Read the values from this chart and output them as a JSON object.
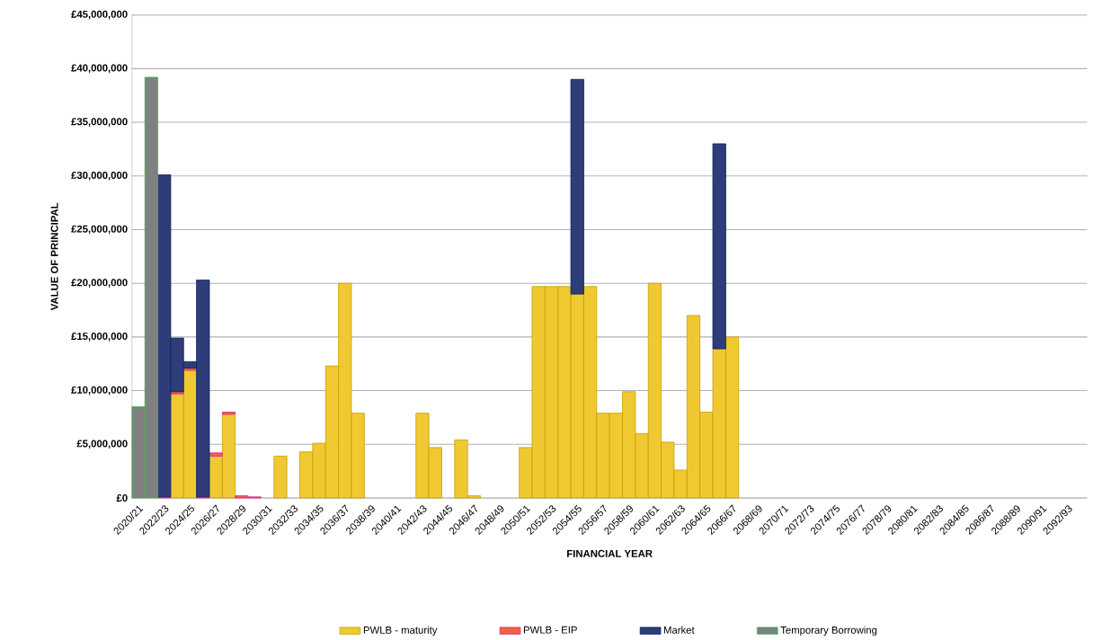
{
  "chart_data": {
    "type": "bar",
    "stacked": true,
    "xlabel": "FINANCIAL YEAR",
    "ylabel": "VALUE OF PRINCIPAL",
    "categories": [
      "2020/21",
      null,
      "2022/23",
      null,
      "2024/25",
      null,
      "2026/27",
      null,
      "2028/29",
      null,
      "2030/31",
      null,
      "2032/33",
      null,
      "2034/35",
      null,
      "2036/37",
      null,
      "2038/39",
      null,
      "2040/41",
      null,
      "2042/43",
      null,
      "2044/45",
      null,
      "2046/47",
      null,
      "2048/49",
      null,
      "2050/51",
      null,
      "2052/53",
      null,
      "2054/55",
      null,
      "2056/57",
      null,
      "2058/59",
      null,
      "2060/61",
      null,
      "2062/63",
      null,
      "2064/65",
      null,
      "2066/67",
      null,
      "2068/69",
      null,
      "2070/71",
      null,
      "2072/73",
      null,
      "2074/75",
      null,
      "2076/77",
      null,
      "2078/79",
      null,
      "2080/81",
      null,
      "2082/83",
      null,
      "2084/85",
      null,
      "2086/87",
      null,
      "2088/89",
      null,
      "2090/91",
      null,
      "2092/93",
      null
    ],
    "series": [
      {
        "name": "PWLB - maturity",
        "color": "#f0c832",
        "values": [
          null,
          null,
          null,
          9700000,
          11900000,
          null,
          3900000,
          7800000,
          null,
          null,
          null,
          3900000,
          null,
          4300000,
          5100000,
          12300000,
          20000000,
          7900000,
          null,
          null,
          null,
          null,
          7900000,
          4700000,
          null,
          5400000,
          200000,
          null,
          null,
          null,
          4700000,
          19700000,
          19700000,
          19700000,
          19000000,
          19700000,
          7900000,
          7900000,
          9900000,
          6000000,
          20000000,
          5200000,
          2600000,
          17000000,
          8000000,
          13900000,
          15000000,
          null,
          null,
          null,
          null,
          null,
          null,
          null,
          null,
          null,
          null,
          null,
          null,
          null,
          null,
          null,
          null,
          null,
          null,
          null,
          null,
          null,
          null,
          null,
          null,
          null,
          null,
          null
        ]
      },
      {
        "name": "PWLB - EIP",
        "color": "#f0643c",
        "values": [
          null,
          null,
          100000,
          200000,
          200000,
          100000,
          300000,
          200000,
          200000,
          100000,
          null,
          null,
          null,
          null,
          null,
          null,
          null,
          null,
          null,
          null,
          null,
          null,
          null,
          null,
          null,
          null,
          null,
          null,
          null,
          null,
          null,
          null,
          null,
          null,
          null,
          null,
          null,
          null,
          null,
          null,
          null,
          null,
          null,
          null,
          null,
          null,
          null,
          null,
          null,
          null,
          null,
          null,
          null,
          null,
          null,
          null,
          null,
          null,
          null,
          null,
          null,
          null,
          null,
          null,
          null,
          null,
          null,
          null,
          null,
          null,
          null,
          null,
          null,
          null
        ]
      },
      {
        "name": "Market",
        "color": "#2e3d78",
        "values": [
          null,
          null,
          30000000,
          5000000,
          600000,
          20200000,
          null,
          null,
          null,
          null,
          null,
          null,
          null,
          null,
          null,
          null,
          null,
          null,
          null,
          null,
          null,
          null,
          null,
          null,
          null,
          null,
          null,
          null,
          null,
          null,
          null,
          null,
          null,
          null,
          20000000,
          null,
          null,
          null,
          null,
          null,
          null,
          null,
          null,
          null,
          null,
          19100000,
          null,
          null,
          null,
          null,
          null,
          null,
          null,
          null,
          null,
          null,
          null,
          null,
          null,
          null,
          null,
          null,
          null,
          null,
          null,
          null,
          null,
          null,
          null,
          null,
          null,
          null,
          null,
          null
        ]
      },
      {
        "name": "Temporary Borrowing",
        "color": "#808080",
        "values": [
          8500000,
          39200000,
          null,
          null,
          null,
          null,
          null,
          null,
          null,
          null,
          null,
          null,
          null,
          null,
          null,
          null,
          null,
          null,
          null,
          null,
          null,
          null,
          null,
          null,
          null,
          null,
          null,
          null,
          null,
          null,
          null,
          null,
          null,
          null,
          null,
          null,
          null,
          null,
          null,
          null,
          null,
          null,
          null,
          null,
          null,
          null,
          null,
          null,
          null,
          null,
          null,
          null,
          null,
          null,
          null,
          null,
          null,
          null,
          null,
          null,
          null,
          null,
          null,
          null,
          null,
          null,
          null,
          null,
          null,
          null,
          null,
          null,
          null,
          null
        ]
      }
    ],
    "ylim": [
      0,
      45000000
    ],
    "yticks": [
      {
        "value": 0,
        "label": "£0"
      },
      {
        "value": 5000000,
        "label": "£5,000,000"
      },
      {
        "value": 10000000,
        "label": "£10,000,000"
      },
      {
        "value": 15000000,
        "label": "£15,000,000"
      },
      {
        "value": 20000000,
        "label": "£20,000,000"
      },
      {
        "value": 25000000,
        "label": "£25,000,000"
      },
      {
        "value": 30000000,
        "label": "£30,000,000"
      },
      {
        "value": 35000000,
        "label": "£35,000,000"
      },
      {
        "value": 40000000,
        "label": "£40,000,000"
      },
      {
        "value": 45000000,
        "label": "£45,000,000"
      }
    ],
    "grid": "y",
    "legend": "bottom"
  }
}
